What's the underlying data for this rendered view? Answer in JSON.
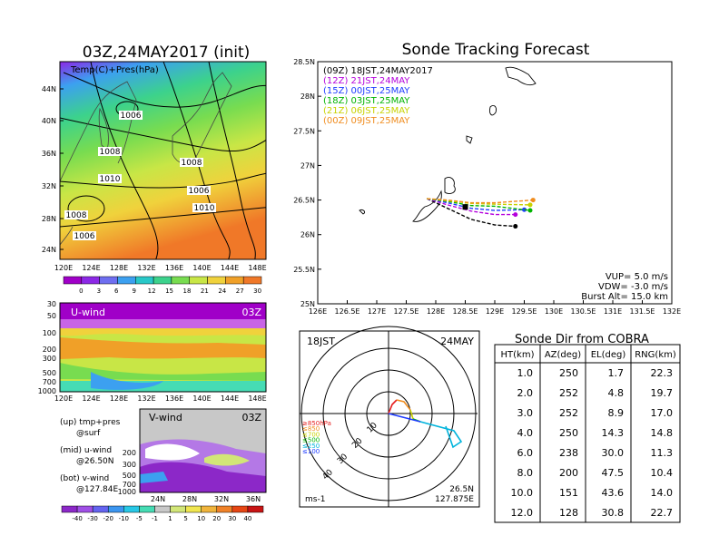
{
  "left_panel": {
    "title": "03Z,24MAY2017 (init)",
    "map_label": "Temp(C)+Pres(hPa)",
    "map_lat_ticks": [
      "44N",
      "40N",
      "36N",
      "32N",
      "28N",
      "24N"
    ],
    "map_lon_ticks": [
      "120E",
      "124E",
      "128E",
      "132E",
      "136E",
      "140E",
      "144E",
      "148E"
    ],
    "contour_labels": [
      "1006",
      "1008",
      "1010",
      "1008",
      "1008",
      "1006",
      "1010",
      "1006"
    ],
    "temp_scale": [
      "0",
      "3",
      "6",
      "9",
      "12",
      "15",
      "18",
      "21",
      "24",
      "27",
      "30"
    ],
    "temp_colors": [
      "#a000c8",
      "#8c28e6",
      "#6e6ef0",
      "#3ca0f0",
      "#28c8c8",
      "#3cd28c",
      "#78dc50",
      "#c8e646",
      "#f0d23c",
      "#f0a028",
      "#f07828"
    ],
    "u_label": "U-wind",
    "u_time": "03Z",
    "u_levels": [
      "30",
      "50",
      "100",
      "200",
      "300",
      "500",
      "700",
      "1000"
    ],
    "u_lon_ticks": [
      "120E",
      "124E",
      "128E",
      "132E",
      "136E",
      "140E",
      "144E",
      "148E"
    ],
    "v_label": "V-wind",
    "v_time": "03Z",
    "v_levels": [
      "200",
      "300",
      "500",
      "700",
      "1000"
    ],
    "v_lat_ticks": [
      "24N",
      "28N",
      "32N",
      "36N"
    ],
    "legend_lines": [
      "(up) tmp+pres",
      "@surf",
      "(mid) u-wind",
      "@26.50N",
      "(bot) v-wind",
      "@127.84E"
    ],
    "wind_scale": [
      "-40",
      "-30",
      "-20",
      "-10",
      "-5",
      "-1",
      "1",
      "5",
      "10",
      "20",
      "30",
      "40"
    ],
    "wind_colors": [
      "#8c28c8",
      "#a050e6",
      "#6464f0",
      "#3c96f0",
      "#28c8e6",
      "#46dcb4",
      "#c8c8c8",
      "#d2e678",
      "#f0e650",
      "#f0b43c",
      "#f08228",
      "#e64614",
      "#c81414"
    ]
  },
  "tracking": {
    "title": "Sonde Tracking Forecast",
    "legend": [
      {
        "label": "(09Z)  18JST,24MAY2017",
        "color": "#000000"
      },
      {
        "label": "(12Z)  21JST,24MAY",
        "color": "#b400dc"
      },
      {
        "label": "(15Z)  00JST,25MAY",
        "color": "#1e3cff"
      },
      {
        "label": "(18Z)  03JST,25MAY",
        "color": "#00b400"
      },
      {
        "label": "(21Z)  06JST,25MAY",
        "color": "#c8d200"
      },
      {
        "label": "(00Z)  09JST,25MAY",
        "color": "#f08c1e"
      }
    ],
    "params": [
      "VUP=  5.0 m/s",
      "VDW= -3.0 m/s",
      "Burst Alt= 15.0 km"
    ]
  },
  "hodograph": {
    "time_left": "18JST",
    "date_right": "24MAY",
    "ring_labels": [
      "10",
      "20",
      "30",
      "40"
    ],
    "unit": "ms-1",
    "lat": "26.5N",
    "lon": "127.875E",
    "level_legend": [
      {
        "label": "≥850hPa",
        "color": "#e61e1e"
      },
      {
        "label": "≤850",
        "color": "#f08c1e"
      },
      {
        "label": "≤700",
        "color": "#c8d200"
      },
      {
        "label": "≤500",
        "color": "#00b400"
      },
      {
        "label": "≤250",
        "color": "#00b4dc"
      },
      {
        "label": "≤100",
        "color": "#1e3cff"
      }
    ]
  },
  "table": {
    "title": "Sonde Dir from COBRA",
    "headers": [
      "HT(km)",
      "AZ(deg)",
      "EL(deg)",
      "RNG(km)"
    ],
    "rows": [
      [
        "1.0",
        "250",
        "1.7",
        "22.3"
      ],
      [
        "2.0",
        "252",
        "4.8",
        "19.7"
      ],
      [
        "3.0",
        "252",
        "8.9",
        "17.0"
      ],
      [
        "4.0",
        "250",
        "14.3",
        "14.8"
      ],
      [
        "6.0",
        "238",
        "30.0",
        "11.3"
      ],
      [
        "8.0",
        "200",
        "47.5",
        "10.4"
      ],
      [
        "10.0",
        "151",
        "43.6",
        "14.0"
      ],
      [
        "12.0",
        "128",
        "30.8",
        "22.7"
      ]
    ]
  },
  "chart_data": {
    "type": "line",
    "title": "Sonde Tracking Forecast",
    "xlabel": "",
    "ylabel": "",
    "x_ticks": [
      "126E",
      "126.5E",
      "127E",
      "127.5E",
      "128E",
      "128.5E",
      "129E",
      "129.5E",
      "130E",
      "130.5E",
      "131E",
      "131.5E",
      "132E"
    ],
    "y_ticks": [
      "25N",
      "25.5N",
      "26N",
      "26.5N",
      "27N",
      "27.5N",
      "28N",
      "28.5N"
    ],
    "xlim": [
      126,
      132
    ],
    "ylim": [
      25,
      28.5
    ],
    "series": [
      {
        "name": "(09Z)  18JST,24MAY2017",
        "color": "#000000",
        "x": [
          127.85,
          128.2,
          128.6,
          129.0,
          129.35
        ],
        "y": [
          26.52,
          26.38,
          26.22,
          26.14,
          26.12
        ]
      },
      {
        "name": "(12Z)  21JST,24MAY",
        "color": "#b400dc",
        "x": [
          127.85,
          128.2,
          128.6,
          129.0,
          129.35
        ],
        "y": [
          26.52,
          26.43,
          26.34,
          26.29,
          26.29
        ]
      },
      {
        "name": "(15Z)  00JST,25MAY",
        "color": "#1e3cff",
        "x": [
          127.85,
          128.2,
          128.6,
          129.0,
          129.5
        ],
        "y": [
          26.52,
          26.46,
          26.38,
          26.35,
          26.36
        ]
      },
      {
        "name": "(18Z)  03JST,25MAY",
        "color": "#00b400",
        "x": [
          127.85,
          128.2,
          128.6,
          129.0,
          129.6
        ],
        "y": [
          26.52,
          26.48,
          26.42,
          26.41,
          26.35
        ]
      },
      {
        "name": "(21Z)  06JST,25MAY",
        "color": "#c8d200",
        "x": [
          127.85,
          128.2,
          128.6,
          129.0,
          129.6
        ],
        "y": [
          26.52,
          26.49,
          26.45,
          26.44,
          26.43
        ]
      },
      {
        "name": "(00Z)  09JST,25MAY",
        "color": "#f08c1e",
        "x": [
          127.85,
          128.2,
          128.6,
          129.0,
          129.65
        ],
        "y": [
          26.52,
          26.5,
          26.46,
          26.46,
          26.5
        ]
      }
    ]
  }
}
